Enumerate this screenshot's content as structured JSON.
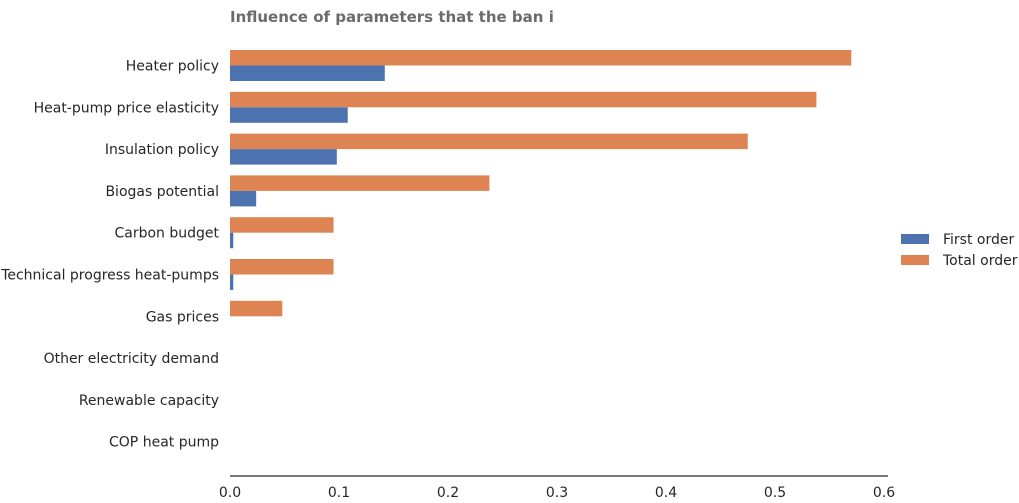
{
  "chart_data": {
    "type": "bar",
    "orientation": "horizontal",
    "title": "Influence of parameters that the ban i",
    "xlabel": "",
    "ylabel": "",
    "xlim": [
      0,
      0.6
    ],
    "xticks": [
      0.0,
      0.1,
      0.2,
      0.3,
      0.4,
      0.5,
      0.6
    ],
    "xtick_labels": [
      "0.0",
      "0.1",
      "0.2",
      "0.3",
      "0.4",
      "0.5",
      "0.6"
    ],
    "grid": false,
    "legend_position": "right",
    "categories": [
      "Heater policy",
      "Heat-pump price elasticity",
      "Insulation policy",
      "Biogas potential",
      "Carbon budget",
      "Technical progress heat-pumps",
      "Gas prices",
      "Other electricity demand",
      "Renewable capacity",
      "COP heat pump"
    ],
    "series": [
      {
        "name": "Total order",
        "color": "#dd8452",
        "values": [
          0.57,
          0.538,
          0.475,
          0.238,
          0.095,
          0.095,
          0.048,
          0.0,
          0.0,
          0.0
        ]
      },
      {
        "name": "First order",
        "color": "#4c72b0",
        "values": [
          0.142,
          0.108,
          0.098,
          0.024,
          0.003,
          0.003,
          0.0,
          0.0,
          0.0,
          0.0
        ]
      }
    ],
    "legend_order": [
      "First order",
      "Total order"
    ]
  }
}
